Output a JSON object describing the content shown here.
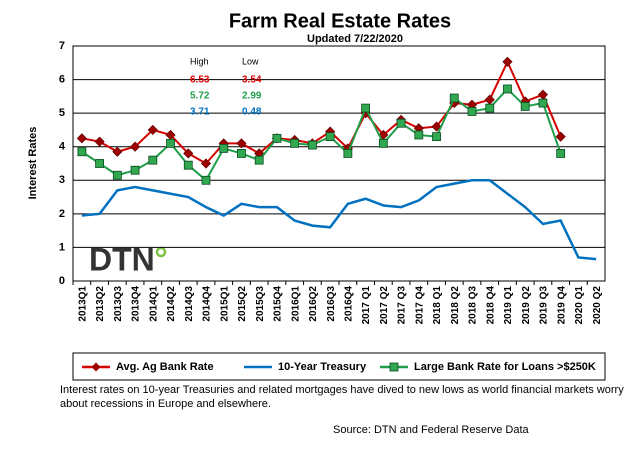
{
  "chart_data": {
    "type": "line",
    "title": "Farm Real Estate Rates",
    "subtitle": "Updated  7/22/2020",
    "y_label": "Interest Rates",
    "categories": [
      "2013Q1",
      "2013Q2",
      "2013Q3",
      "2013Q4",
      "2014Q1",
      "2014Q2",
      "2014Q3",
      "2014Q4",
      "2015Q1",
      "2015Q2",
      "2015Q3",
      "2015Q4",
      "2016Q1",
      "2016Q2",
      "2016Q3",
      "2016Q4",
      "2017 Q1",
      "2017 Q2",
      "2017 Q3",
      "2017 Q4",
      "2018 Q1",
      "2018 Q2",
      "2018 Q3",
      "2018 Q4",
      "2019 Q1",
      "2019 Q2",
      "2019 Q3",
      "2019 Q4",
      "2020 Q1",
      "2020 Q2"
    ],
    "series": [
      {
        "name": "Avg. Ag Bank Rate",
        "color": "#d40000",
        "marker": "diamond",
        "marker_color": "#9e0000",
        "values": [
          4.25,
          4.15,
          3.85,
          4.0,
          4.5,
          4.35,
          3.8,
          3.5,
          4.1,
          4.1,
          3.8,
          4.25,
          4.2,
          4.1,
          4.45,
          3.95,
          5.0,
          4.35,
          4.8,
          4.55,
          4.6,
          5.3,
          5.25,
          5.4,
          6.53,
          5.35,
          5.55,
          4.3,
          null,
          null
        ]
      },
      {
        "name": "10-Year Treasury",
        "color": "#0070c0",
        "marker": "none",
        "values": [
          1.95,
          2.0,
          2.7,
          2.8,
          2.7,
          2.6,
          2.5,
          2.2,
          1.95,
          2.3,
          2.2,
          2.2,
          1.8,
          1.65,
          1.6,
          2.3,
          2.45,
          2.25,
          2.2,
          2.4,
          2.8,
          2.9,
          3.0,
          3.0,
          2.6,
          2.2,
          1.7,
          1.8,
          0.7,
          0.65
        ]
      },
      {
        "name": "Large Bank Rate for Loans >$250K",
        "color": "#1f9e4a",
        "marker": "square",
        "marker_color": "#2fa84f",
        "values": [
          3.85,
          3.5,
          3.15,
          3.3,
          3.6,
          4.1,
          3.45,
          3.0,
          3.95,
          3.8,
          3.6,
          4.25,
          4.1,
          4.05,
          4.3,
          3.8,
          5.15,
          4.1,
          4.7,
          4.35,
          4.3,
          5.45,
          5.05,
          5.15,
          5.72,
          5.2,
          5.3,
          3.8,
          null,
          null
        ]
      }
    ],
    "ylim": [
      0,
      7
    ],
    "yticks": [
      0,
      1,
      2,
      3,
      4,
      5,
      6,
      7
    ],
    "grid": true,
    "summary_table": {
      "headers": [
        "High",
        "Low"
      ],
      "rows": [
        [
          6.53,
          3.54
        ],
        [
          5.72,
          2.99
        ],
        [
          3.71,
          0.48
        ]
      ],
      "row_colors": [
        "#e00000",
        "#1f9e4a",
        "#0070c0"
      ]
    },
    "logo": "DTN",
    "caption": "Interest rates on 10-year Treasuries and related mortgages have dived to new lows as world financial markets worry about recessions in Europe and elsewhere.",
    "source": "Source: DTN and Federal Reserve Data"
  }
}
